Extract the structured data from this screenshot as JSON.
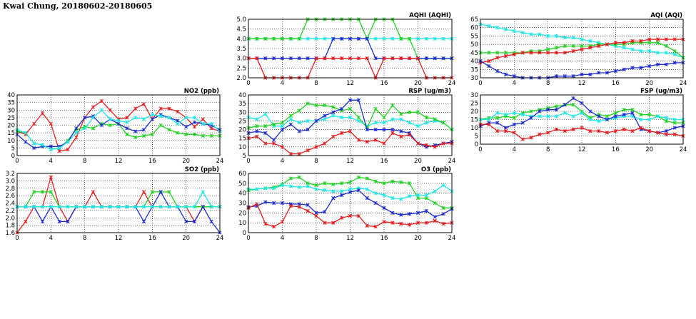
{
  "page": {
    "title": "Kwai Chung, 20180602-20180605"
  },
  "colors": {
    "red": "#e41a1c",
    "green": "#1fd21f",
    "blue": "#1c2bd1",
    "cyan": "#20e6e6"
  },
  "chart_data": [
    {
      "id": "no2",
      "type": "line",
      "title": "NO2 (ppb)",
      "xlim": [
        0,
        24
      ],
      "xticks": [
        0,
        4,
        8,
        12,
        16,
        20,
        24
      ],
      "ylim": [
        0,
        40
      ],
      "yticks": [
        0,
        5,
        10,
        15,
        20,
        25,
        30,
        35,
        40
      ],
      "grid": true,
      "x": [
        0,
        1,
        2,
        3,
        4,
        5,
        6,
        7,
        8,
        9,
        10,
        11,
        12,
        13,
        14,
        15,
        16,
        17,
        18,
        19,
        20,
        21,
        22,
        23,
        24
      ],
      "series": [
        {
          "name": "red",
          "color": "#e41a1c",
          "values": [
            16,
            14,
            21,
            28,
            21,
            3,
            4,
            12,
            25,
            32,
            36,
            30,
            24,
            25,
            31,
            34,
            24,
            31,
            31,
            29,
            25,
            19,
            24,
            18,
            16
          ]
        },
        {
          "name": "green",
          "color": "#1fd21f",
          "values": [
            16,
            15,
            8,
            7,
            4,
            5,
            10,
            17,
            19,
            18,
            21,
            20,
            21,
            14,
            12,
            13,
            14,
            20,
            17,
            15,
            14,
            14,
            13,
            13,
            13
          ]
        },
        {
          "name": "blue",
          "color": "#1c2bd1",
          "values": [
            14,
            9,
            5,
            6,
            6,
            6,
            9,
            18,
            25,
            26,
            20,
            24,
            21,
            18,
            16,
            17,
            24,
            27,
            25,
            23,
            19,
            22,
            21,
            20,
            17
          ]
        },
        {
          "name": "cyan",
          "color": "#20e6e6",
          "values": [
            17,
            15,
            8,
            7,
            4,
            5,
            9,
            15,
            18,
            25,
            30,
            24,
            23,
            22,
            25,
            24,
            27,
            26,
            25,
            21,
            25,
            25,
            21,
            21,
            16
          ]
        }
      ]
    },
    {
      "id": "so2",
      "type": "line",
      "title": "SO2 (ppb)",
      "xlim": [
        0,
        24
      ],
      "xticks": [
        0,
        4,
        8,
        12,
        16,
        20,
        24
      ],
      "ylim": [
        1.6,
        3.2
      ],
      "yticks": [
        1.6,
        1.8,
        2.0,
        2.2,
        2.4,
        2.6,
        2.8,
        3.0,
        3.2
      ],
      "grid": true,
      "x": [
        0,
        1,
        2,
        3,
        4,
        5,
        6,
        7,
        8,
        9,
        10,
        11,
        12,
        13,
        14,
        15,
        16,
        17,
        18,
        19,
        20,
        21,
        22,
        23,
        24
      ],
      "series": [
        {
          "name": "red",
          "color": "#e41a1c",
          "values": [
            1.6,
            1.9,
            2.3,
            2.3,
            3.1,
            2.3,
            1.9,
            2.3,
            2.3,
            2.7,
            2.3,
            2.3,
            2.3,
            2.3,
            2.3,
            2.7,
            2.3,
            2.3,
            2.3,
            2.3,
            2.3,
            1.9,
            2.3,
            2.3,
            2.3
          ]
        },
        {
          "name": "green",
          "color": "#1fd21f",
          "values": [
            2.3,
            2.3,
            2.7,
            2.7,
            2.7,
            2.3,
            2.3,
            2.3,
            2.3,
            2.3,
            2.3,
            2.3,
            2.3,
            2.3,
            2.3,
            2.3,
            2.7,
            2.7,
            2.7,
            2.3,
            2.3,
            2.3,
            2.3,
            2.3,
            2.3
          ]
        },
        {
          "name": "blue",
          "color": "#1c2bd1",
          "values": [
            2.3,
            2.3,
            2.3,
            1.9,
            2.3,
            1.9,
            1.9,
            2.3,
            2.3,
            2.3,
            2.3,
            2.3,
            2.3,
            2.3,
            2.3,
            1.9,
            2.3,
            2.7,
            2.3,
            2.3,
            1.9,
            1.9,
            2.3,
            1.9,
            1.6
          ]
        },
        {
          "name": "cyan",
          "color": "#20e6e6",
          "values": [
            2.3,
            2.3,
            2.3,
            2.3,
            2.3,
            2.3,
            2.3,
            2.3,
            2.3,
            2.3,
            2.3,
            2.3,
            2.3,
            2.3,
            2.3,
            2.3,
            2.3,
            2.3,
            2.3,
            2.3,
            2.3,
            2.3,
            2.7,
            2.3,
            2.3
          ]
        }
      ]
    },
    {
      "id": "aqhi",
      "type": "line",
      "title": "AQHI (AQHI)",
      "xlim": [
        0,
        24
      ],
      "xticks": [
        0,
        4,
        8,
        12,
        16,
        20,
        24
      ],
      "ylim": [
        2.0,
        5.0
      ],
      "yticks": [
        2.0,
        2.5,
        3.0,
        3.5,
        4.0,
        4.5,
        5.0
      ],
      "grid": true,
      "x": [
        0,
        1,
        2,
        3,
        4,
        5,
        6,
        7,
        8,
        9,
        10,
        11,
        12,
        13,
        14,
        15,
        16,
        17,
        18,
        19,
        20,
        21,
        22,
        23,
        24
      ],
      "series": [
        {
          "name": "cyan",
          "color": "#20e6e6",
          "values": [
            4,
            4,
            4,
            4,
            4,
            4,
            4,
            4,
            4,
            4,
            4,
            4,
            4,
            4,
            4,
            4,
            4,
            4,
            4,
            4,
            4,
            4,
            4,
            4,
            4
          ]
        },
        {
          "name": "green",
          "color": "#1fd21f",
          "values": [
            4,
            4,
            4,
            4,
            4,
            4,
            4,
            5,
            5,
            5,
            5,
            5,
            5,
            5,
            4,
            5,
            5,
            5,
            4,
            4,
            3,
            3,
            3,
            3,
            3
          ]
        },
        {
          "name": "blue",
          "color": "#1c2bd1",
          "values": [
            3,
            3,
            3,
            3,
            3,
            3,
            3,
            3,
            3,
            3,
            4,
            4,
            4,
            4,
            4,
            3,
            3,
            3,
            3,
            3,
            3,
            3,
            3,
            3,
            3
          ]
        },
        {
          "name": "red",
          "color": "#e41a1c",
          "values": [
            3,
            3,
            2,
            2,
            2,
            2,
            2,
            2,
            3,
            3,
            3,
            3,
            3,
            3,
            3,
            2,
            3,
            3,
            3,
            3,
            3,
            2,
            2,
            2,
            2
          ]
        }
      ]
    },
    {
      "id": "rsp",
      "type": "line",
      "title": "RSP (ug/m3)",
      "xlim": [
        0,
        24
      ],
      "xticks": [
        0,
        4,
        8,
        12,
        16,
        20,
        24
      ],
      "ylim": [
        5,
        40
      ],
      "yticks": [
        5,
        10,
        15,
        20,
        25,
        30,
        35,
        40
      ],
      "grid": true,
      "x": [
        0,
        1,
        2,
        3,
        4,
        5,
        6,
        7,
        8,
        9,
        10,
        11,
        12,
        13,
        14,
        15,
        16,
        17,
        18,
        19,
        20,
        21,
        22,
        23,
        24
      ],
      "series": [
        {
          "name": "cyan",
          "color": "#20e6e6",
          "values": [
            27,
            26,
            29,
            22,
            22,
            26,
            24,
            25,
            25,
            26,
            28,
            27,
            27,
            25,
            22,
            24,
            24,
            26,
            26,
            24,
            22,
            24,
            25,
            24,
            20
          ]
        },
        {
          "name": "green",
          "color": "#1fd21f",
          "values": [
            21,
            22,
            22,
            23,
            24,
            28,
            31,
            35,
            34,
            34,
            33,
            31,
            32,
            27,
            21,
            32,
            27,
            34,
            29,
            30,
            30,
            27,
            26,
            24,
            20
          ]
        },
        {
          "name": "blue",
          "color": "#1c2bd1",
          "values": [
            18,
            19,
            18,
            14,
            20,
            23,
            19,
            20,
            25,
            28,
            30,
            32,
            37,
            37,
            20,
            20,
            20,
            20,
            19,
            18,
            12,
            10,
            11,
            12,
            13
          ]
        },
        {
          "name": "red",
          "color": "#e41a1c",
          "values": [
            15,
            16,
            12,
            12,
            10,
            6,
            6,
            8,
            10,
            12,
            16,
            18,
            19,
            14,
            13,
            14,
            12,
            18,
            16,
            17,
            12,
            11,
            10,
            12,
            12
          ]
        }
      ]
    },
    {
      "id": "o3",
      "type": "line",
      "title": "O3 (ppb)",
      "xlim": [
        0,
        24
      ],
      "xticks": [
        0,
        4,
        8,
        12,
        16,
        20,
        24
      ],
      "ylim": [
        0,
        60
      ],
      "yticks": [
        0,
        10,
        20,
        30,
        40,
        50,
        60
      ],
      "grid": true,
      "x": [
        0,
        1,
        2,
        3,
        4,
        5,
        6,
        7,
        8,
        9,
        10,
        11,
        12,
        13,
        14,
        15,
        16,
        17,
        18,
        19,
        20,
        21,
        22,
        23,
        24
      ],
      "series": [
        {
          "name": "green",
          "color": "#1fd21f",
          "values": [
            43,
            44,
            45,
            46,
            49,
            55,
            56,
            50,
            48,
            50,
            49,
            50,
            51,
            56,
            55,
            52,
            50,
            52,
            51,
            50,
            35,
            35,
            30,
            25,
            25
          ]
        },
        {
          "name": "cyan",
          "color": "#20e6e6",
          "values": [
            44,
            44,
            45,
            45,
            48,
            47,
            46,
            47,
            44,
            43,
            42,
            42,
            44,
            45,
            44,
            40,
            38,
            35,
            34,
            37,
            38,
            38,
            42,
            48,
            42
          ]
        },
        {
          "name": "blue",
          "color": "#1c2bd1",
          "values": [
            26,
            27,
            31,
            30,
            30,
            29,
            29,
            28,
            20,
            21,
            35,
            38,
            41,
            43,
            35,
            30,
            25,
            20,
            18,
            19,
            20,
            22,
            16,
            19,
            24
          ]
        },
        {
          "name": "red",
          "color": "#e41a1c",
          "values": [
            25,
            29,
            9,
            6,
            11,
            27,
            26,
            22,
            17,
            10,
            10,
            15,
            17,
            17,
            7,
            6,
            11,
            10,
            9,
            8,
            10,
            10,
            12,
            9,
            10
          ]
        }
      ]
    },
    {
      "id": "aqi",
      "type": "line",
      "title": "AQI (AQI)",
      "xlim": [
        0,
        24
      ],
      "xticks": [
        0,
        4,
        8,
        12,
        16,
        20,
        24
      ],
      "ylim": [
        30,
        65
      ],
      "yticks": [
        30,
        35,
        40,
        45,
        50,
        55,
        60,
        65
      ],
      "grid": true,
      "x": [
        0,
        1,
        2,
        3,
        4,
        5,
        6,
        7,
        8,
        9,
        10,
        11,
        12,
        13,
        14,
        15,
        16,
        17,
        18,
        19,
        20,
        21,
        22,
        23,
        24
      ],
      "series": [
        {
          "name": "cyan",
          "color": "#20e6e6",
          "values": [
            62,
            61,
            60,
            59,
            58,
            57,
            56,
            56,
            55,
            55,
            54,
            54,
            53,
            52,
            51,
            50,
            49,
            48,
            47,
            46,
            46,
            45,
            45,
            44,
            42
          ]
        },
        {
          "name": "green",
          "color": "#1fd21f",
          "values": [
            45,
            45,
            45,
            45,
            45,
            45,
            46,
            46,
            47,
            48,
            49,
            49,
            49,
            49,
            50,
            50,
            50,
            50,
            51,
            51,
            51,
            51,
            49,
            46,
            42
          ]
        },
        {
          "name": "red",
          "color": "#e41a1c",
          "values": [
            39,
            40,
            42,
            43,
            44,
            45,
            45,
            45,
            45,
            45,
            45,
            46,
            47,
            48,
            49,
            50,
            51,
            51,
            52,
            52,
            53,
            53,
            53,
            53,
            53
          ]
        },
        {
          "name": "blue",
          "color": "#1c2bd1",
          "values": [
            40,
            37,
            34,
            32,
            31,
            30,
            30,
            30,
            30,
            31,
            31,
            31,
            32,
            32,
            33,
            33,
            34,
            35,
            36,
            36,
            37,
            38,
            38,
            39,
            39
          ]
        }
      ]
    },
    {
      "id": "fsp",
      "type": "line",
      "title": "FSP (ug/m3)",
      "xlim": [
        0,
        24
      ],
      "xticks": [
        0,
        4,
        8,
        12,
        16,
        20,
        24
      ],
      "ylim": [
        0,
        30
      ],
      "yticks": [
        0,
        5,
        10,
        15,
        20,
        25,
        30
      ],
      "grid": true,
      "x": [
        0,
        1,
        2,
        3,
        4,
        5,
        6,
        7,
        8,
        9,
        10,
        11,
        12,
        13,
        14,
        15,
        16,
        17,
        18,
        19,
        20,
        21,
        22,
        23,
        24
      ],
      "series": [
        {
          "name": "green",
          "color": "#1fd21f",
          "values": [
            15,
            16,
            16,
            17,
            16,
            19,
            20,
            21,
            22,
            23,
            24,
            24,
            20,
            16,
            18,
            17,
            19,
            21,
            21,
            18,
            18,
            17,
            14,
            13,
            13
          ]
        },
        {
          "name": "cyan",
          "color": "#20e6e6",
          "values": [
            15,
            15,
            19,
            18,
            19,
            18,
            17,
            17,
            17,
            17,
            19,
            17,
            19,
            15,
            14,
            15,
            16,
            17,
            17,
            15,
            15,
            17,
            16,
            15,
            15
          ]
        },
        {
          "name": "blue",
          "color": "#1c2bd1",
          "values": [
            11,
            13,
            13,
            10,
            12,
            13,
            16,
            20,
            21,
            21,
            24,
            28,
            25,
            20,
            17,
            15,
            17,
            18,
            19,
            9,
            8,
            7,
            8,
            10,
            11
          ]
        },
        {
          "name": "red",
          "color": "#e41a1c",
          "values": [
            12,
            12,
            8,
            8,
            7,
            3,
            4,
            6,
            7,
            9,
            8,
            9,
            10,
            8,
            8,
            7,
            8,
            9,
            8,
            10,
            8,
            7,
            6,
            6,
            5
          ]
        }
      ]
    }
  ]
}
